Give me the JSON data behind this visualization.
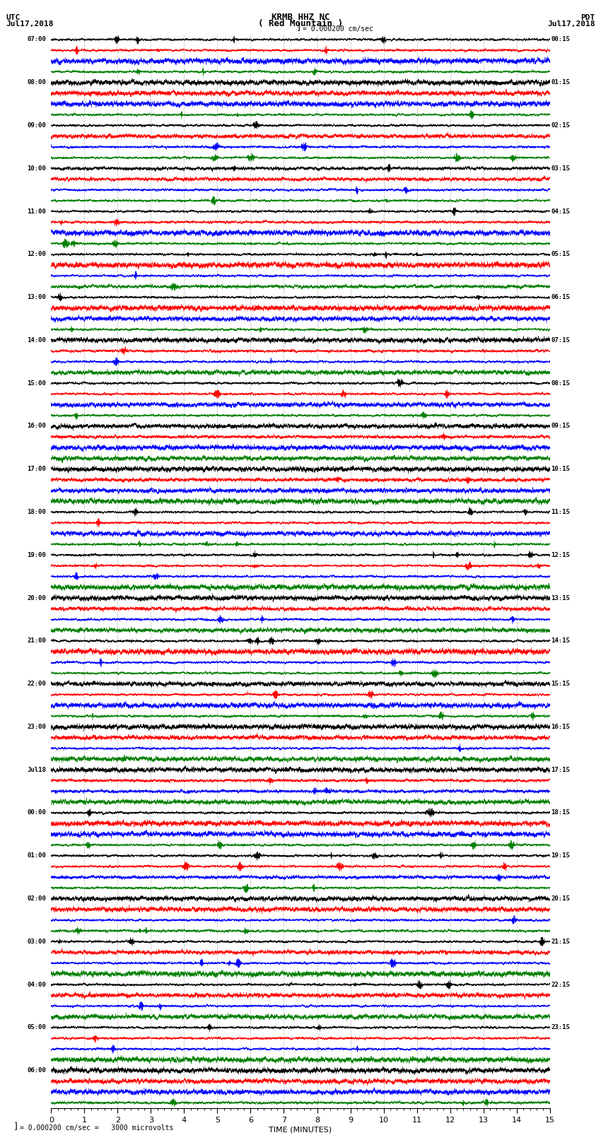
{
  "title_line1": "KRMB HHZ NC",
  "title_line2": "( Red Mountain )",
  "scale_text": "= 0.000200 cm/sec",
  "bottom_text": "= 0.000200 cm/sec =   3000 microvolts",
  "utc_label1": "UTC",
  "utc_label2": "Jul17,2018",
  "pdt_label1": "PDT",
  "pdt_label2": "Jul17,2018",
  "xlabel": "TIME (MINUTES)",
  "left_times": [
    "07:00",
    "",
    "",
    "",
    "08:00",
    "",
    "",
    "",
    "09:00",
    "",
    "",
    "",
    "10:00",
    "",
    "",
    "",
    "11:00",
    "",
    "",
    "",
    "12:00",
    "",
    "",
    "",
    "13:00",
    "",
    "",
    "",
    "14:00",
    "",
    "",
    "",
    "15:00",
    "",
    "",
    "",
    "16:00",
    "",
    "",
    "",
    "17:00",
    "",
    "",
    "",
    "18:00",
    "",
    "",
    "",
    "19:00",
    "",
    "",
    "",
    "20:00",
    "",
    "",
    "",
    "21:00",
    "",
    "",
    "",
    "22:00",
    "",
    "",
    "",
    "23:00",
    "",
    "",
    "",
    "Jul18",
    "",
    "",
    "",
    "00:00",
    "",
    "",
    "",
    "01:00",
    "",
    "",
    "",
    "02:00",
    "",
    "",
    "",
    "03:00",
    "",
    "",
    "",
    "04:00",
    "",
    "",
    "",
    "05:00",
    "",
    "",
    "",
    "06:00",
    "",
    "",
    ""
  ],
  "right_times": [
    "00:15",
    "",
    "",
    "",
    "01:15",
    "",
    "",
    "",
    "02:15",
    "",
    "",
    "",
    "03:15",
    "",
    "",
    "",
    "04:15",
    "",
    "",
    "",
    "05:15",
    "",
    "",
    "",
    "06:15",
    "",
    "",
    "",
    "07:15",
    "",
    "",
    "",
    "08:15",
    "",
    "",
    "",
    "09:15",
    "",
    "",
    "",
    "10:15",
    "",
    "",
    "",
    "11:15",
    "",
    "",
    "",
    "12:15",
    "",
    "",
    "",
    "13:15",
    "",
    "",
    "",
    "14:15",
    "",
    "",
    "",
    "15:15",
    "",
    "",
    "",
    "16:15",
    "",
    "",
    "",
    "17:15",
    "",
    "",
    "",
    "18:15",
    "",
    "",
    "",
    "19:15",
    "",
    "",
    "",
    "20:15",
    "",
    "",
    "",
    "21:15",
    "",
    "",
    "",
    "22:15",
    "",
    "",
    "",
    "23:15",
    "",
    "",
    ""
  ],
  "trace_colors": [
    "black",
    "red",
    "blue",
    "green"
  ],
  "bg_color": "white",
  "seed": 42,
  "n_points": 9000,
  "minor_tick_interval": 0.2,
  "major_tick_interval": 1.0
}
